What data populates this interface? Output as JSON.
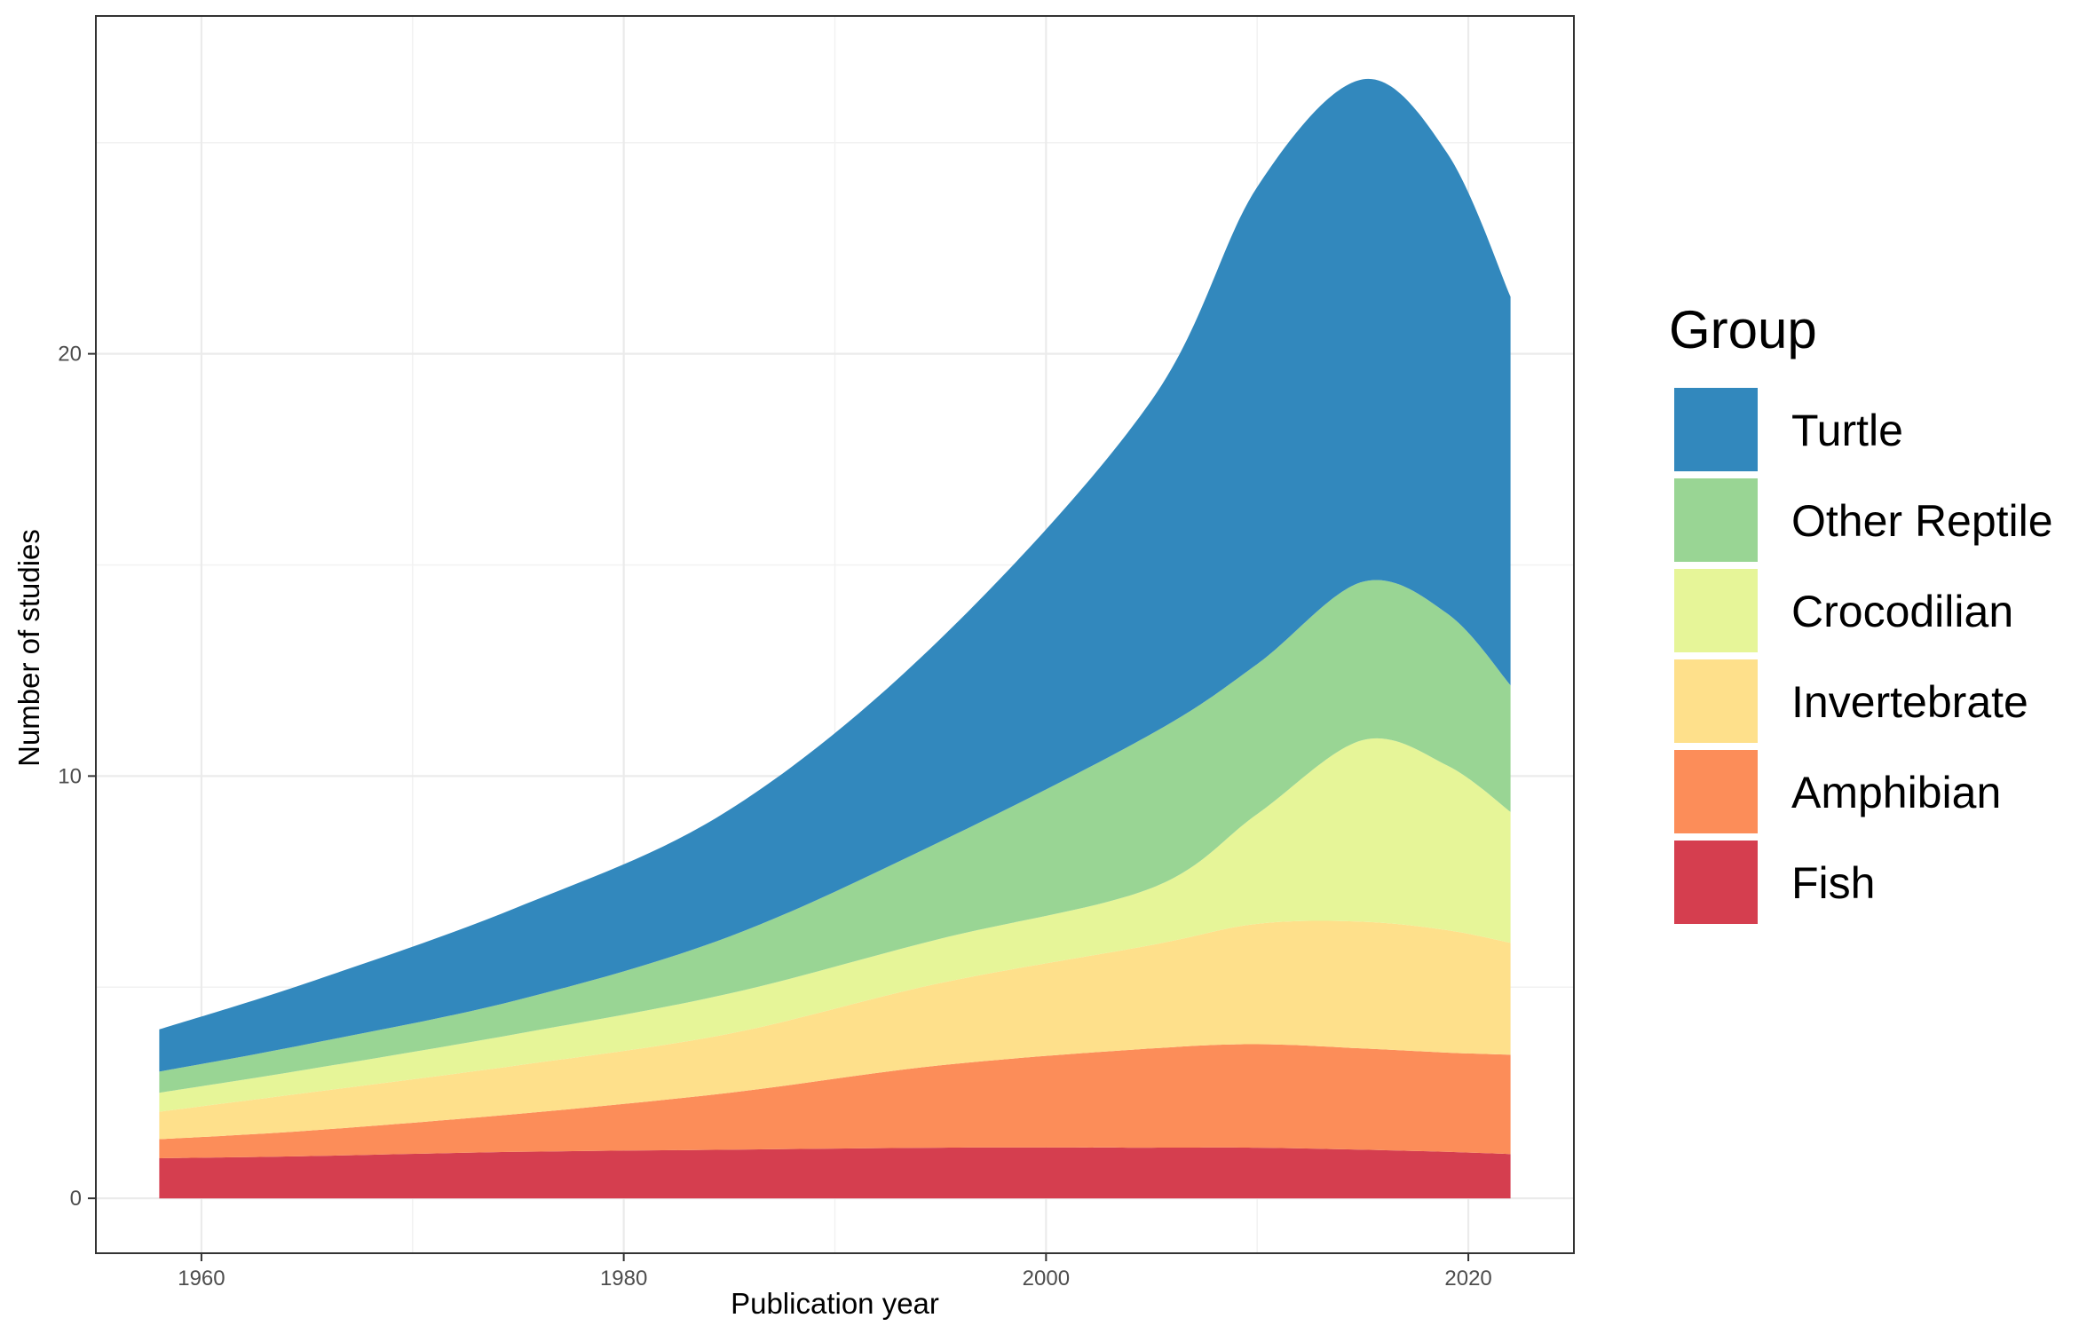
{
  "chart_data": {
    "type": "area",
    "stacked": true,
    "xlabel": "Publication year",
    "ylabel": "Number of studies",
    "xlim": [
      1955,
      2025
    ],
    "ylim": [
      -1.3,
      28.0
    ],
    "x_ticks": [
      1960,
      1980,
      2000,
      2020
    ],
    "y_ticks": [
      0,
      10,
      20
    ],
    "grid": true,
    "legend": {
      "title": "Group",
      "position": "right"
    },
    "x": [
      1958,
      1965,
      1975,
      1985,
      1995,
      2005,
      2010,
      2015,
      2019,
      2022
    ],
    "series": [
      {
        "name": "Fish",
        "color": "#d53e4f",
        "values": [
          0.95,
          1.0,
          1.1,
          1.15,
          1.2,
          1.2,
          1.2,
          1.15,
          1.1,
          1.05
        ]
      },
      {
        "name": "Amphibian",
        "color": "#fc8d59",
        "values": [
          0.45,
          0.6,
          0.9,
          1.35,
          1.95,
          2.35,
          2.45,
          2.4,
          2.35,
          2.35
        ]
      },
      {
        "name": "Invertebrate",
        "color": "#fee08b",
        "values": [
          0.65,
          0.9,
          1.15,
          1.4,
          1.95,
          2.45,
          2.85,
          3.0,
          2.9,
          2.65
        ]
      },
      {
        "name": "Crocodilian",
        "color": "#e6f598",
        "values": [
          0.45,
          0.55,
          0.75,
          0.95,
          1.05,
          1.35,
          2.6,
          4.3,
          3.9,
          3.1
        ]
      },
      {
        "name": "Other Reptile",
        "color": "#99d594",
        "values": [
          0.5,
          0.6,
          0.8,
          1.35,
          2.3,
          3.65,
          3.55,
          3.75,
          3.6,
          3.0
        ]
      },
      {
        "name": "Turtle",
        "color": "#3288bd",
        "values": [
          1.0,
          1.45,
          2.2,
          3.0,
          4.8,
          7.9,
          11.3,
          11.9,
          10.9,
          9.2
        ]
      }
    ]
  }
}
